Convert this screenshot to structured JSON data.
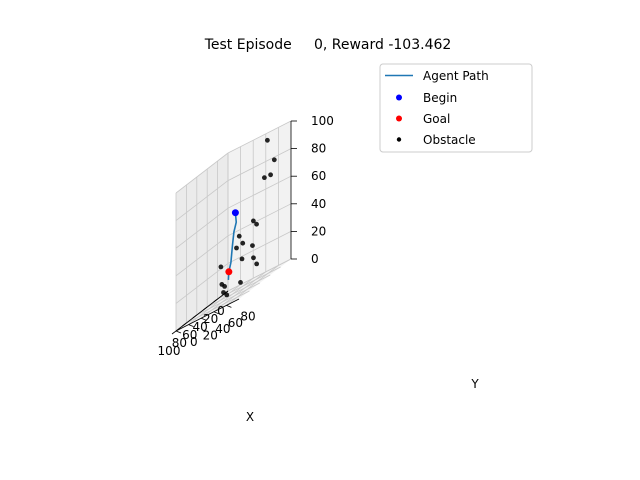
{
  "chart_data": {
    "type": "scatter3d",
    "title": "Test Episode     0, Reward -103.462",
    "xlabel": "X",
    "ylabel": "Y",
    "zlabel": "",
    "xlim": [
      0,
      100
    ],
    "ylim": [
      0,
      100
    ],
    "zlim": [
      0,
      100
    ],
    "x_ticks": [
      "0",
      "20",
      "40",
      "60",
      "80",
      "100"
    ],
    "y_ticks": [
      "0",
      "20",
      "40",
      "60",
      "80"
    ],
    "z_ticks": [
      "0",
      "20",
      "40",
      "60",
      "80",
      "100"
    ],
    "grid": true,
    "legend_position": "top-right",
    "series": [
      {
        "name": "Agent Path",
        "kind": "line",
        "color": "#1f77b4",
        "points": [
          [
            10,
            20,
            55
          ],
          [
            12,
            23,
            48
          ],
          [
            25,
            30,
            43
          ],
          [
            40,
            40,
            35
          ],
          [
            55,
            50,
            25
          ],
          [
            65,
            55,
            20
          ],
          [
            72,
            60,
            15
          ]
        ]
      },
      {
        "name": "Begin",
        "kind": "marker",
        "color": "#0000ff",
        "points": [
          [
            10,
            20,
            55
          ]
        ]
      },
      {
        "name": "Goal",
        "kind": "marker",
        "color": "#ff0000",
        "points": [
          [
            65,
            55,
            20
          ]
        ]
      },
      {
        "name": "Obstacle",
        "kind": "marker",
        "color": "#000000",
        "points": [
          [
            3,
            65,
            95
          ],
          [
            15,
            80,
            70
          ],
          [
            20,
            90,
            80
          ],
          [
            33,
            85,
            72
          ],
          [
            36,
            70,
            45
          ],
          [
            42,
            80,
            42
          ],
          [
            54,
            85,
            20
          ],
          [
            60,
            95,
            15
          ],
          [
            62,
            90,
            30
          ],
          [
            45,
            55,
            40
          ],
          [
            20,
            30,
            30
          ],
          [
            8,
            30,
            30
          ],
          [
            70,
            80,
            25
          ],
          [
            55,
            40,
            10
          ],
          [
            45,
            30,
            5
          ],
          [
            30,
            15,
            10
          ],
          [
            75,
            60,
            5
          ],
          [
            85,
            90,
            10
          ],
          [
            50,
            30,
            25
          ]
        ]
      }
    ]
  }
}
